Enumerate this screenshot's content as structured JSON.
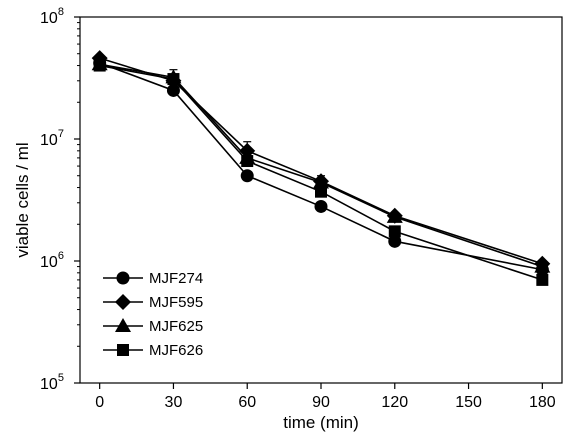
{
  "chart_data": {
    "type": "line",
    "xlabel": "time (min)",
    "ylabel": "viable cells / ml",
    "x": [
      0,
      30,
      60,
      90,
      120,
      180
    ],
    "xlim": [
      -8,
      188
    ],
    "ylim": [
      100000,
      100000000
    ],
    "yscale": "log",
    "x_ticks": [
      0,
      30,
      60,
      90,
      120,
      150,
      180
    ],
    "x_tick_labels": [
      "0",
      "30",
      "60",
      "90",
      "120",
      "150",
      "180"
    ],
    "y_tick_labels": [
      {
        "base": "10",
        "exp": "5",
        "value": 100000
      },
      {
        "base": "10",
        "exp": "6",
        "value": 1000000
      },
      {
        "base": "10",
        "exp": "7",
        "value": 10000000
      },
      {
        "base": "10",
        "exp": "8",
        "value": 100000000
      }
    ],
    "grid": false,
    "legend_position": "bottom-left",
    "series": [
      {
        "name": "MJF274",
        "marker": "circle",
        "values": [
          42000000,
          25000000,
          5000000,
          2800000,
          1450000,
          850000
        ]
      },
      {
        "name": "MJF595",
        "marker": "diamond",
        "values": [
          46000000,
          30000000,
          8000000,
          4500000,
          2350000,
          950000
        ]
      },
      {
        "name": "MJF625",
        "marker": "triangle",
        "values": [
          41000000,
          32000000,
          7000000,
          4400000,
          2300000,
          900000
        ]
      },
      {
        "name": "MJF626",
        "marker": "square",
        "values": [
          40000000,
          31000000,
          6600000,
          3700000,
          1750000,
          700000
        ]
      }
    ],
    "error_bars": [
      {
        "series": "MJF595",
        "x": 30,
        "high": 37000000
      },
      {
        "series": "MJF595",
        "x": 60,
        "high": 9500000
      },
      {
        "series": "MJF625",
        "x": 90,
        "high": 5000000
      }
    ],
    "colors": {
      "line": "#000000",
      "marker": "#000000",
      "axis": "#000000"
    }
  }
}
